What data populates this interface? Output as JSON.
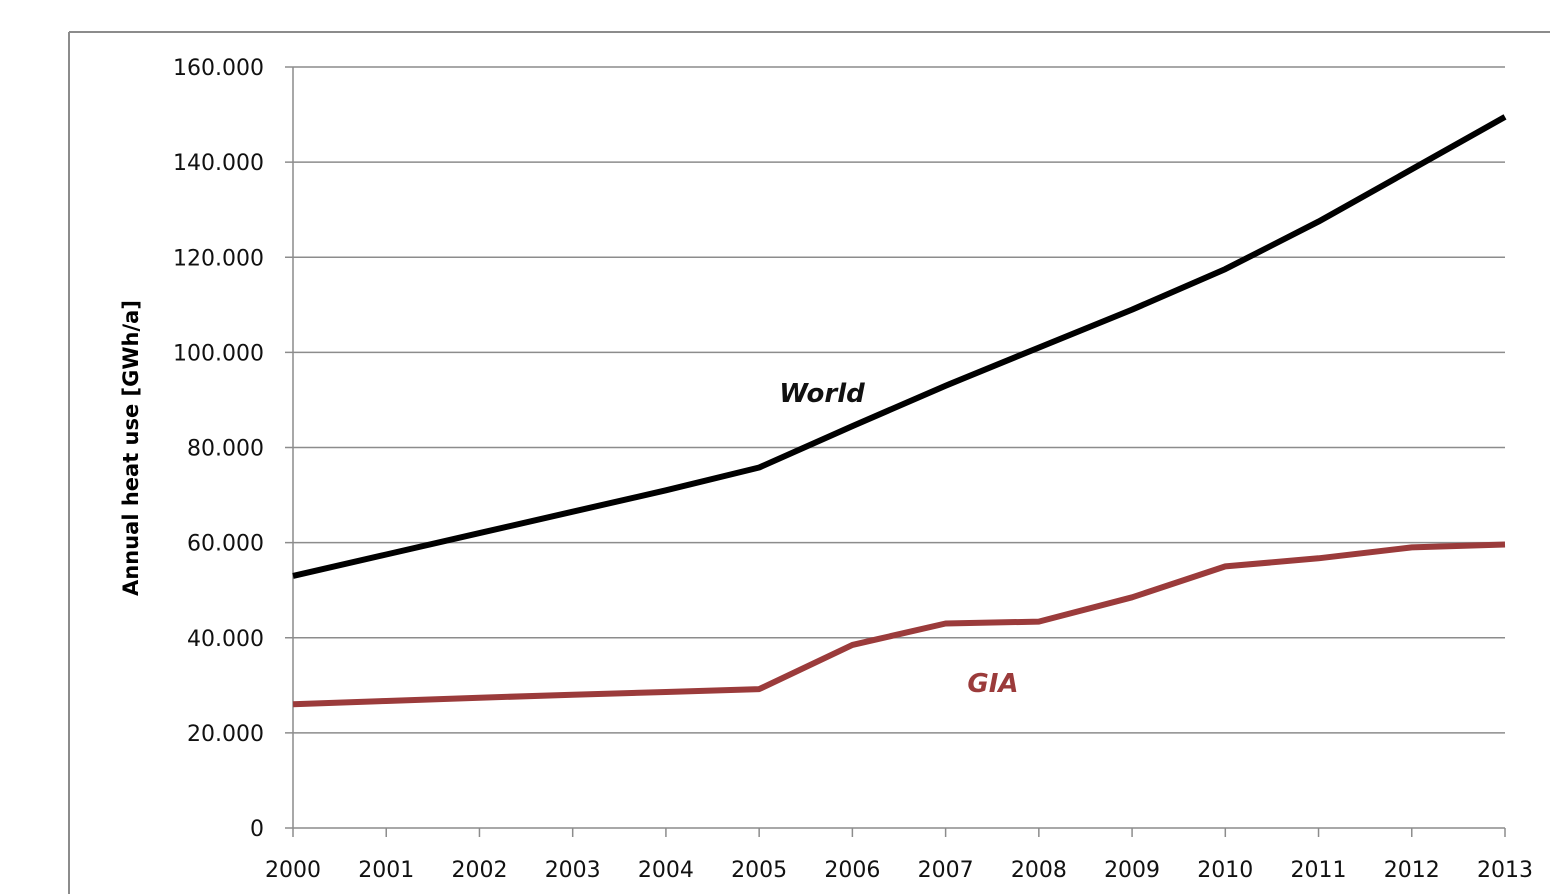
{
  "chart_data": {
    "type": "line",
    "title": "",
    "xlabel": "",
    "ylabel": "Annual heat use  [GWh/a]",
    "x": [
      "2000",
      "2001",
      "2002",
      "2003",
      "2004",
      "2005",
      "2006",
      "2007",
      "2008",
      "2009",
      "2010",
      "2011",
      "2012",
      "2013"
    ],
    "ylim": [
      0,
      160000
    ],
    "yticks": [
      0,
      20000,
      40000,
      60000,
      80000,
      100000,
      120000,
      140000,
      160000
    ],
    "ytick_labels": [
      "0",
      "20.000",
      "40.000",
      "60.000",
      "80.000",
      "100.000",
      "120.000",
      "140.000",
      "160.000"
    ],
    "grid": true,
    "legend": "none",
    "series": [
      {
        "name": "World",
        "color": "#000000",
        "values": [
          53000,
          57500,
          62000,
          66500,
          71000,
          75800,
          84500,
          93000,
          101000,
          109000,
          117500,
          127500,
          138500,
          149500
        ]
      },
      {
        "name": "GIA",
        "color": "#9b3b3b",
        "values": [
          26000,
          26700,
          27400,
          28000,
          28600,
          29200,
          38500,
          43000,
          43400,
          48500,
          55000,
          56700,
          59000,
          59600
        ]
      }
    ]
  }
}
